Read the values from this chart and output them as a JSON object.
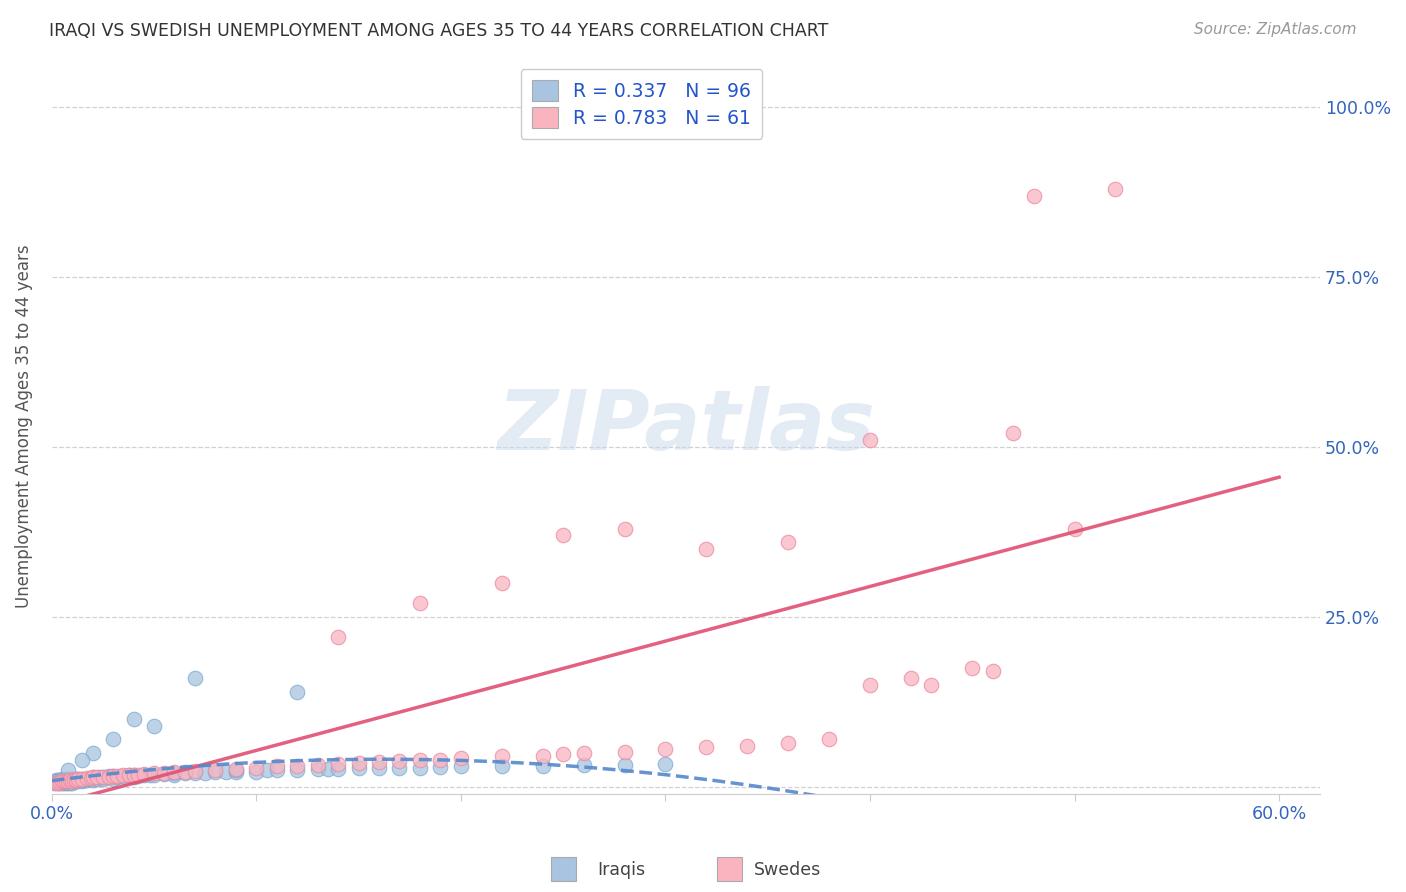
{
  "title": "IRAQI VS SWEDISH UNEMPLOYMENT AMONG AGES 35 TO 44 YEARS CORRELATION CHART",
  "source": "Source: ZipAtlas.com",
  "ylabel": "Unemployment Among Ages 35 to 44 years",
  "R_iraqis": 0.337,
  "N_iraqis": 96,
  "R_swedes": 0.783,
  "N_swedes": 61,
  "iraqis_color": "#a8c4e0",
  "iraqis_edge_color": "#7aaace",
  "swedes_color": "#f9b4c0",
  "swedes_edge_color": "#e888a0",
  "iraqis_line_color": "#5588cc",
  "swedes_line_color": "#e05070",
  "background_color": "#ffffff",
  "grid_color": "#cccccc",
  "title_color": "#333333",
  "source_color": "#999999",
  "axis_label_color": "#3366bb",
  "watermark_color": "#c8d8ea",
  "xlim": [
    0.0,
    0.62
  ],
  "ylim": [
    -0.01,
    1.07
  ],
  "xtick_positions": [
    0.0,
    0.1,
    0.2,
    0.3,
    0.4,
    0.5,
    0.6
  ],
  "xtick_labels": [
    "0.0%",
    "",
    "",
    "",
    "",
    "",
    "60.0%"
  ],
  "ytick_positions": [
    0.0,
    0.25,
    0.5,
    0.75,
    1.0
  ],
  "ytick_labels": [
    "",
    "25.0%",
    "50.0%",
    "75.0%",
    "100.0%"
  ],
  "iraqis_x": [
    0.001,
    0.002,
    0.002,
    0.003,
    0.003,
    0.003,
    0.004,
    0.004,
    0.004,
    0.005,
    0.005,
    0.005,
    0.005,
    0.006,
    0.006,
    0.006,
    0.007,
    0.007,
    0.007,
    0.008,
    0.008,
    0.008,
    0.009,
    0.009,
    0.01,
    0.01,
    0.01,
    0.011,
    0.011,
    0.012,
    0.012,
    0.013,
    0.013,
    0.014,
    0.015,
    0.015,
    0.016,
    0.017,
    0.018,
    0.019,
    0.02,
    0.02,
    0.022,
    0.023,
    0.025,
    0.025,
    0.027,
    0.028,
    0.03,
    0.03,
    0.032,
    0.034,
    0.036,
    0.038,
    0.04,
    0.04,
    0.042,
    0.045,
    0.048,
    0.05,
    0.055,
    0.06,
    0.06,
    0.065,
    0.07,
    0.075,
    0.08,
    0.085,
    0.09,
    0.09,
    0.1,
    0.105,
    0.11,
    0.12,
    0.13,
    0.135,
    0.14,
    0.15,
    0.16,
    0.17,
    0.18,
    0.19,
    0.2,
    0.22,
    0.24,
    0.26,
    0.28,
    0.3,
    0.07,
    0.12,
    0.04,
    0.05,
    0.03,
    0.02,
    0.015,
    0.008
  ],
  "iraqis_y": [
    0.005,
    0.008,
    0.01,
    0.005,
    0.008,
    0.01,
    0.005,
    0.008,
    0.01,
    0.005,
    0.008,
    0.01,
    0.012,
    0.005,
    0.008,
    0.01,
    0.005,
    0.008,
    0.012,
    0.005,
    0.008,
    0.012,
    0.006,
    0.01,
    0.005,
    0.008,
    0.012,
    0.008,
    0.012,
    0.008,
    0.012,
    0.008,
    0.012,
    0.01,
    0.008,
    0.012,
    0.01,
    0.01,
    0.012,
    0.012,
    0.01,
    0.015,
    0.012,
    0.015,
    0.012,
    0.015,
    0.014,
    0.016,
    0.012,
    0.016,
    0.014,
    0.016,
    0.015,
    0.017,
    0.015,
    0.018,
    0.016,
    0.018,
    0.017,
    0.018,
    0.019,
    0.018,
    0.02,
    0.02,
    0.02,
    0.02,
    0.022,
    0.022,
    0.022,
    0.025,
    0.022,
    0.025,
    0.025,
    0.025,
    0.026,
    0.026,
    0.027,
    0.028,
    0.028,
    0.028,
    0.028,
    0.029,
    0.03,
    0.03,
    0.03,
    0.032,
    0.032,
    0.034,
    0.16,
    0.14,
    0.1,
    0.09,
    0.07,
    0.05,
    0.04,
    0.025
  ],
  "swedes_x": [
    0.002,
    0.003,
    0.004,
    0.005,
    0.006,
    0.007,
    0.008,
    0.009,
    0.01,
    0.011,
    0.012,
    0.013,
    0.015,
    0.017,
    0.019,
    0.02,
    0.022,
    0.025,
    0.028,
    0.03,
    0.032,
    0.035,
    0.038,
    0.04,
    0.042,
    0.045,
    0.05,
    0.055,
    0.06,
    0.065,
    0.07,
    0.08,
    0.09,
    0.1,
    0.11,
    0.12,
    0.13,
    0.14,
    0.15,
    0.16,
    0.17,
    0.18,
    0.19,
    0.2,
    0.22,
    0.24,
    0.25,
    0.26,
    0.28,
    0.3,
    0.32,
    0.34,
    0.36,
    0.38,
    0.4,
    0.42,
    0.45,
    0.47,
    0.52,
    0.48,
    0.5
  ],
  "swedes_y": [
    0.005,
    0.006,
    0.007,
    0.008,
    0.008,
    0.009,
    0.008,
    0.01,
    0.009,
    0.01,
    0.01,
    0.012,
    0.012,
    0.013,
    0.013,
    0.014,
    0.014,
    0.015,
    0.015,
    0.016,
    0.016,
    0.017,
    0.017,
    0.018,
    0.018,
    0.019,
    0.02,
    0.02,
    0.022,
    0.022,
    0.024,
    0.025,
    0.026,
    0.028,
    0.03,
    0.03,
    0.032,
    0.033,
    0.035,
    0.036,
    0.038,
    0.04,
    0.04,
    0.042,
    0.045,
    0.046,
    0.048,
    0.05,
    0.052,
    0.055,
    0.058,
    0.06,
    0.065,
    0.07,
    0.15,
    0.16,
    0.175,
    0.52,
    0.88,
    0.87,
    0.38
  ],
  "swedes_scatter_extra_x": [
    0.25,
    0.28,
    0.32,
    0.36,
    0.22,
    0.18,
    0.14,
    0.4,
    0.43,
    0.46
  ],
  "swedes_scatter_extra_y": [
    0.37,
    0.38,
    0.35,
    0.36,
    0.3,
    0.27,
    0.22,
    0.51,
    0.15,
    0.17
  ],
  "watermark": "ZIPatlas"
}
